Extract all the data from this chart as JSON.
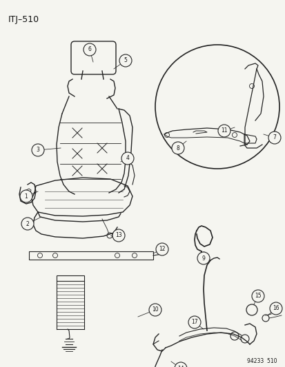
{
  "title": "ITJ–510",
  "bg_color": "#f5f5f0",
  "text_color": "#111111",
  "line_color": "#222222",
  "caption": "94233  510",
  "figsize": [
    4.14,
    5.33
  ],
  "dpi": 100
}
